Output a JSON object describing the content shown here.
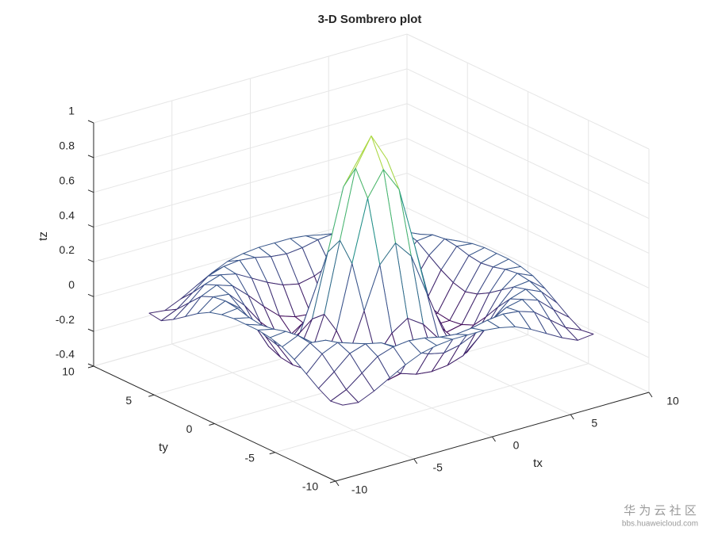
{
  "chart_data": {
    "type": "mesh",
    "title": "3-D Sombrero plot",
    "xlabel": "tx",
    "ylabel": "ty",
    "zlabel": "tz",
    "x": [
      -8,
      -7,
      -6,
      -5,
      -4,
      -3,
      -2,
      -1,
      0,
      1,
      2,
      3,
      4,
      5,
      6,
      7,
      8
    ],
    "y": [
      -8,
      -7,
      -6,
      -5,
      -4,
      -3,
      -2,
      -1,
      0,
      1,
      2,
      3,
      4,
      5,
      6,
      7,
      8
    ],
    "z": [
      [
        -0.08,
        -0.09,
        -0.05,
        0,
        0.05,
        0.09,
        0.11,
        0.12,
        0.12,
        0.12,
        0.11,
        0.09,
        0.05,
        0,
        -0.05,
        -0.09,
        -0.08
      ],
      [
        -0.09,
        -0.05,
        0.02,
        0.09,
        0.12,
        0.13,
        0.12,
        0.1,
        0.09,
        0.1,
        0.12,
        0.13,
        0.12,
        0.09,
        0.02,
        -0.05,
        -0.09
      ],
      [
        -0.05,
        0.02,
        0.1,
        0.13,
        0.11,
        0.06,
        0.01,
        -0.03,
        -0.05,
        -0.03,
        0.01,
        0.06,
        0.11,
        0.13,
        0.1,
        0.02,
        -0.05
      ],
      [
        0,
        0.09,
        0.13,
        0.1,
        0.02,
        -0.07,
        -0.15,
        -0.18,
        -0.19,
        -0.18,
        -0.15,
        -0.07,
        0.02,
        0.1,
        0.13,
        0.09,
        0
      ],
      [
        0.05,
        0.12,
        0.11,
        0.02,
        -0.1,
        -0.19,
        -0.22,
        -0.2,
        -0.19,
        -0.2,
        -0.22,
        -0.19,
        -0.1,
        0.02,
        0.11,
        0.12,
        0.05
      ],
      [
        0.09,
        0.13,
        0.06,
        -0.07,
        -0.19,
        -0.21,
        -0.12,
        -0.01,
        0.05,
        -0.01,
        -0.12,
        -0.21,
        -0.19,
        -0.07,
        0.06,
        0.13,
        0.09
      ],
      [
        0.11,
        0.12,
        0.01,
        -0.15,
        -0.22,
        -0.12,
        0.11,
        0.35,
        0.45,
        0.35,
        0.11,
        -0.12,
        -0.22,
        -0.15,
        0.01,
        0.12,
        0.11
      ],
      [
        0.12,
        0.1,
        -0.03,
        -0.18,
        -0.2,
        -0.01,
        0.35,
        0.7,
        0.84,
        0.7,
        0.35,
        -0.01,
        -0.2,
        -0.18,
        -0.03,
        0.1,
        0.12
      ],
      [
        0.12,
        0.09,
        -0.05,
        -0.19,
        -0.19,
        0.05,
        0.45,
        0.84,
        1,
        0.84,
        0.45,
        0.05,
        -0.19,
        -0.19,
        -0.05,
        0.09,
        0.12
      ],
      [
        0.12,
        0.1,
        -0.03,
        -0.18,
        -0.2,
        -0.01,
        0.35,
        0.7,
        0.84,
        0.7,
        0.35,
        -0.01,
        -0.2,
        -0.18,
        -0.03,
        0.1,
        0.12
      ],
      [
        0.11,
        0.12,
        0.01,
        -0.15,
        -0.22,
        -0.12,
        0.11,
        0.35,
        0.45,
        0.35,
        0.11,
        -0.12,
        -0.22,
        -0.15,
        0.01,
        0.12,
        0.11
      ],
      [
        0.09,
        0.13,
        0.06,
        -0.07,
        -0.19,
        -0.21,
        -0.12,
        -0.01,
        0.05,
        -0.01,
        -0.12,
        -0.21,
        -0.19,
        -0.07,
        0.06,
        0.13,
        0.09
      ],
      [
        0.05,
        0.12,
        0.11,
        0.02,
        -0.1,
        -0.19,
        -0.22,
        -0.2,
        -0.19,
        -0.2,
        -0.22,
        -0.19,
        -0.1,
        0.02,
        0.11,
        0.12,
        0.05
      ],
      [
        0,
        0.09,
        0.13,
        0.1,
        0.02,
        -0.07,
        -0.15,
        -0.18,
        -0.19,
        -0.18,
        -0.15,
        -0.07,
        0.02,
        0.1,
        0.13,
        0.09,
        0
      ],
      [
        -0.05,
        0.02,
        0.1,
        0.13,
        0.11,
        0.06,
        0.01,
        -0.03,
        -0.05,
        -0.03,
        0.01,
        0.06,
        0.11,
        0.13,
        0.1,
        0.02,
        -0.05
      ],
      [
        -0.09,
        -0.05,
        0.02,
        0.09,
        0.12,
        0.13,
        0.12,
        0.1,
        0.09,
        0.1,
        0.12,
        0.13,
        0.12,
        0.09,
        0.02,
        -0.05,
        -0.09
      ],
      [
        -0.08,
        -0.09,
        -0.05,
        0,
        0.05,
        0.09,
        0.11,
        0.12,
        0.12,
        0.12,
        0.11,
        0.09,
        0.05,
        0,
        -0.05,
        -0.09,
        -0.08
      ]
    ],
    "xlim": [
      -10,
      10
    ],
    "ylim": [
      -10,
      10
    ],
    "zlim": [
      -0.4,
      1
    ],
    "xticks": [
      -10,
      -5,
      0,
      5,
      10
    ],
    "yticks": [
      -10,
      -5,
      0,
      5,
      10
    ],
    "zticks": [
      -0.4,
      -0.2,
      0,
      0.2,
      0.4,
      0.6,
      0.8,
      1
    ],
    "grid": true,
    "colormap": [
      "#440154",
      "#3b528b",
      "#21918c",
      "#5ec962",
      "#fde725"
    ]
  },
  "watermark": {
    "title": "华 为 云 社 区",
    "url": "bbs.huaweicloud.com"
  }
}
